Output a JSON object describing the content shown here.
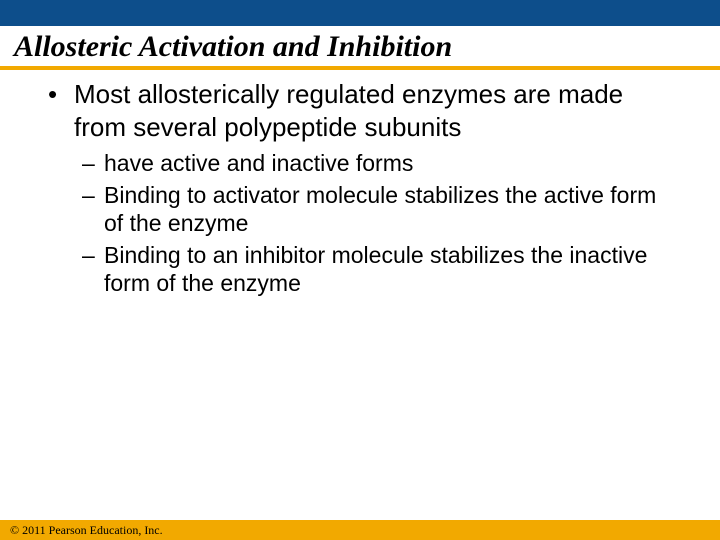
{
  "colors": {
    "top_bar": "#0d4e8b",
    "title_underline": "#f2a900",
    "footer_bar": "#f2a900",
    "title_text": "#000000",
    "body_text": "#000000",
    "footer_text": "#000000",
    "background": "#ffffff"
  },
  "layout": {
    "top_bar_height": 26,
    "title_underline_height": 4,
    "footer_bar_height": 20
  },
  "typography": {
    "title_fontsize": 30,
    "level1_fontsize": 26,
    "level2_fontsize": 23,
    "footer_fontsize": 12,
    "level1_lineheight": 1.25,
    "level2_lineheight": 1.22
  },
  "title": "Allosteric Activation and Inhibition",
  "bullets": {
    "level1": [
      {
        "text": "Most allosterically regulated enzymes are made from several polypeptide subunits",
        "level2": [
          "have active and inactive forms",
          "Binding to activator molecule stabilizes the active form of the enzyme",
          "Binding to an inhibitor molecule stabilizes the inactive form of the enzyme"
        ]
      }
    ]
  },
  "footer": "© 2011 Pearson Education, Inc."
}
